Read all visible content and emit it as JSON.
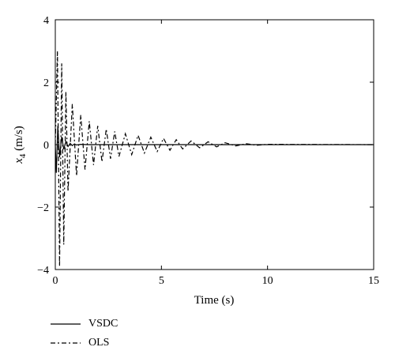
{
  "chart_data": {
    "type": "line",
    "title": "",
    "xlabel": "Time (s)",
    "ylabel_main": "x",
    "ylabel_sub": "4",
    "ylabel_unit": " (m/s)",
    "xlim": [
      0,
      15
    ],
    "ylim": [
      -4,
      4
    ],
    "xticks": [
      0,
      5,
      10,
      15
    ],
    "yticks": [
      -4,
      -2,
      0,
      2,
      4
    ],
    "xtick_labels": [
      "0",
      "5",
      "10",
      "15"
    ],
    "ytick_labels": [
      "−4",
      "−2",
      "0",
      "2",
      "4"
    ],
    "grid": false,
    "legend_position": "below-left",
    "series": [
      {
        "name": "VSDC",
        "style": "solid",
        "color": "#000000",
        "x": [
          0,
          0.05,
          0.12,
          0.2,
          0.3,
          0.4,
          0.5,
          0.6,
          0.7,
          0.8,
          0.9,
          1.0,
          1.2,
          1.5,
          2.0,
          3.0,
          5.0,
          10.0,
          15.0
        ],
        "y": [
          0,
          -0.9,
          0.6,
          -0.4,
          0.25,
          -0.15,
          0.1,
          -0.06,
          0.04,
          -0.03,
          0.02,
          -0.01,
          0.01,
          0,
          0,
          0,
          0,
          0,
          0
        ]
      },
      {
        "name": "OLS",
        "style": "dashdot",
        "color": "#000000",
        "x": [
          0,
          0.1,
          0.2,
          0.3,
          0.4,
          0.5,
          0.6,
          0.8,
          1.0,
          1.2,
          1.4,
          1.6,
          1.8,
          2.0,
          2.2,
          2.4,
          2.6,
          2.8,
          3.0,
          3.3,
          3.6,
          3.9,
          4.2,
          4.5,
          4.8,
          5.1,
          5.4,
          5.7,
          6.0,
          6.4,
          6.8,
          7.2,
          7.6,
          8.0,
          8.5,
          9.0,
          9.5,
          10.0,
          15.0
        ],
        "y": [
          0,
          3.0,
          -3.9,
          2.6,
          -3.2,
          1.7,
          -1.5,
          1.3,
          -1.0,
          0.95,
          -0.8,
          0.75,
          -0.65,
          0.6,
          -0.55,
          0.5,
          -0.45,
          0.42,
          -0.38,
          0.35,
          -0.32,
          0.3,
          -0.27,
          0.24,
          -0.22,
          0.2,
          -0.18,
          0.16,
          -0.14,
          0.12,
          -0.1,
          0.09,
          -0.07,
          0.06,
          -0.04,
          0.03,
          -0.02,
          0.01,
          0
        ]
      }
    ]
  }
}
